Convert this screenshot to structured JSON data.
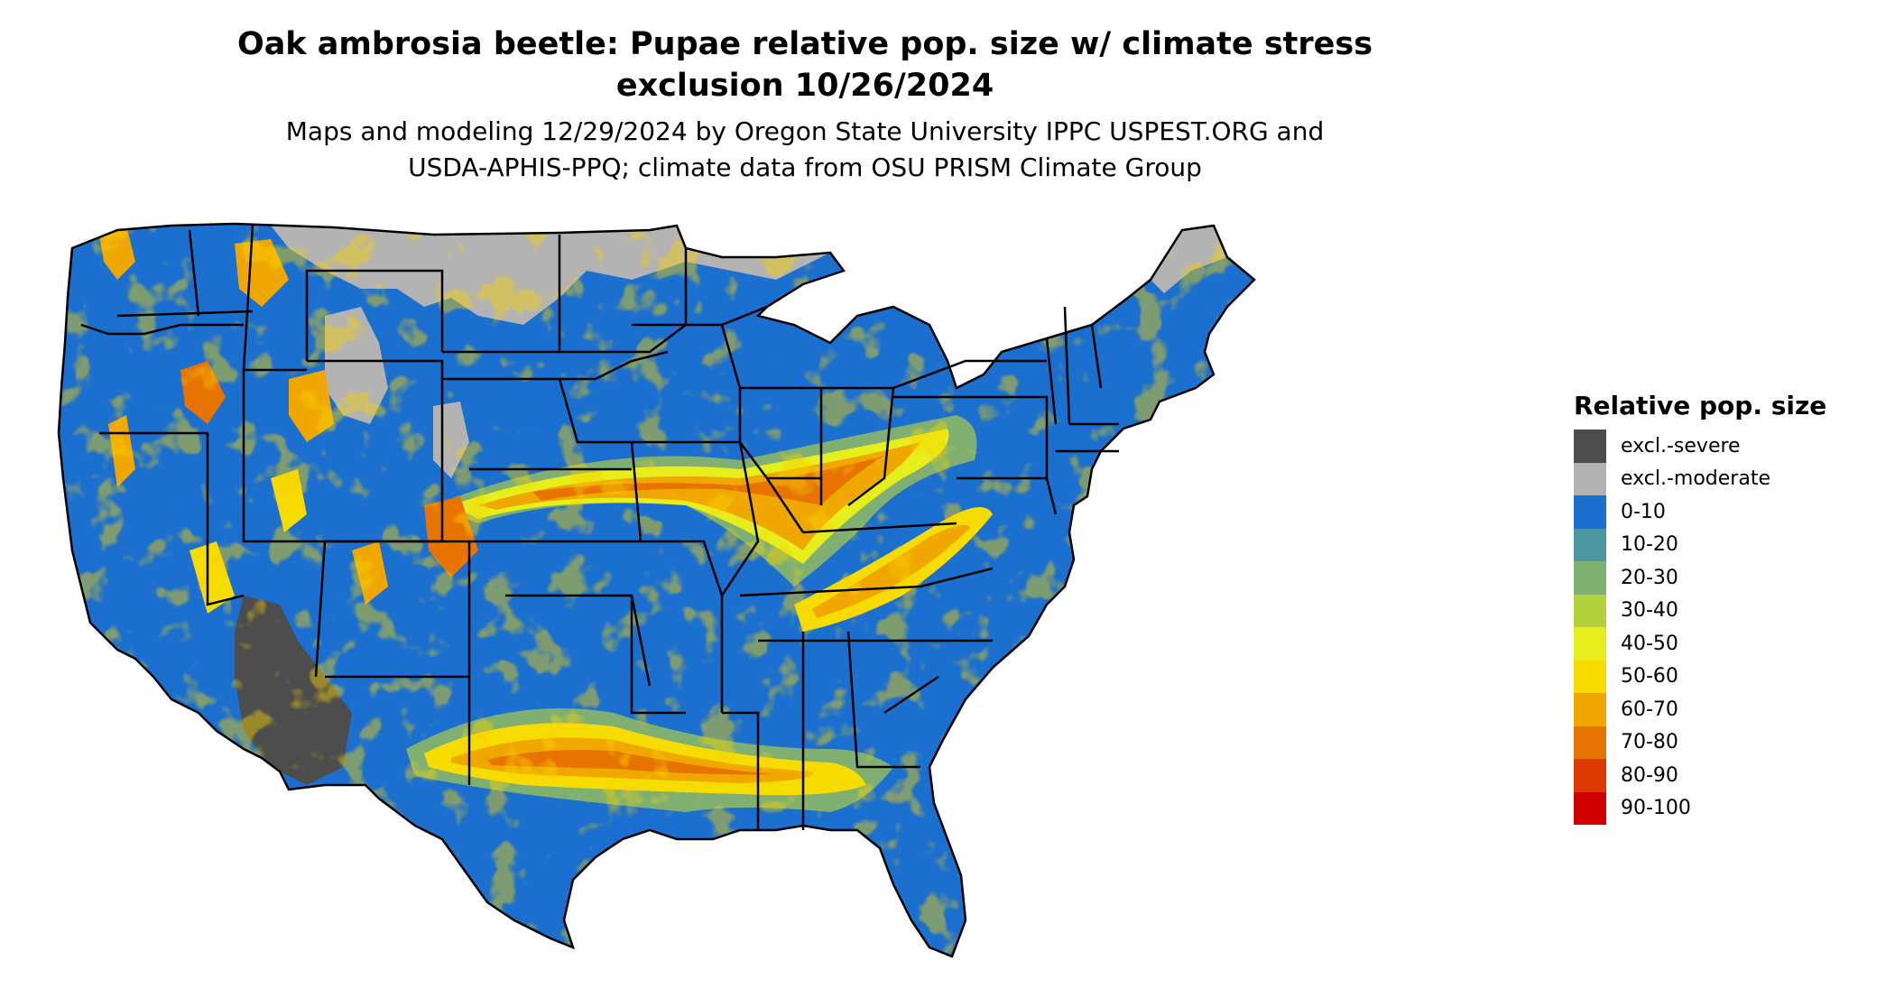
{
  "title_line1": "Oak ambrosia beetle: Pupae relative pop. size w/ climate stress",
  "title_line2": "exclusion 10/26/2024",
  "subtitle_line1": "Maps and modeling 12/29/2024 by Oregon State University IPPC USPEST.ORG and",
  "subtitle_line2": "USDA-APHIS-PPQ; climate data from OSU PRISM Climate Group",
  "legend": {
    "title": "Relative pop. size",
    "items": [
      {
        "label": "excl.-severe",
        "color": "#4d4d4d"
      },
      {
        "label": "excl.-moderate",
        "color": "#b3b3b3"
      },
      {
        "label": "0-10",
        "color": "#1b6fcf"
      },
      {
        "label": "10-20",
        "color": "#4c96a0"
      },
      {
        "label": "20-30",
        "color": "#7fb072"
      },
      {
        "label": "30-40",
        "color": "#b2d13c"
      },
      {
        "label": "40-50",
        "color": "#e6ee1c"
      },
      {
        "label": "50-60",
        "color": "#f7dc00"
      },
      {
        "label": "60-70",
        "color": "#f0a800"
      },
      {
        "label": "70-80",
        "color": "#e77300"
      },
      {
        "label": "80-90",
        "color": "#db3a00"
      },
      {
        "label": "90-100",
        "color": "#d10000"
      }
    ]
  }
}
